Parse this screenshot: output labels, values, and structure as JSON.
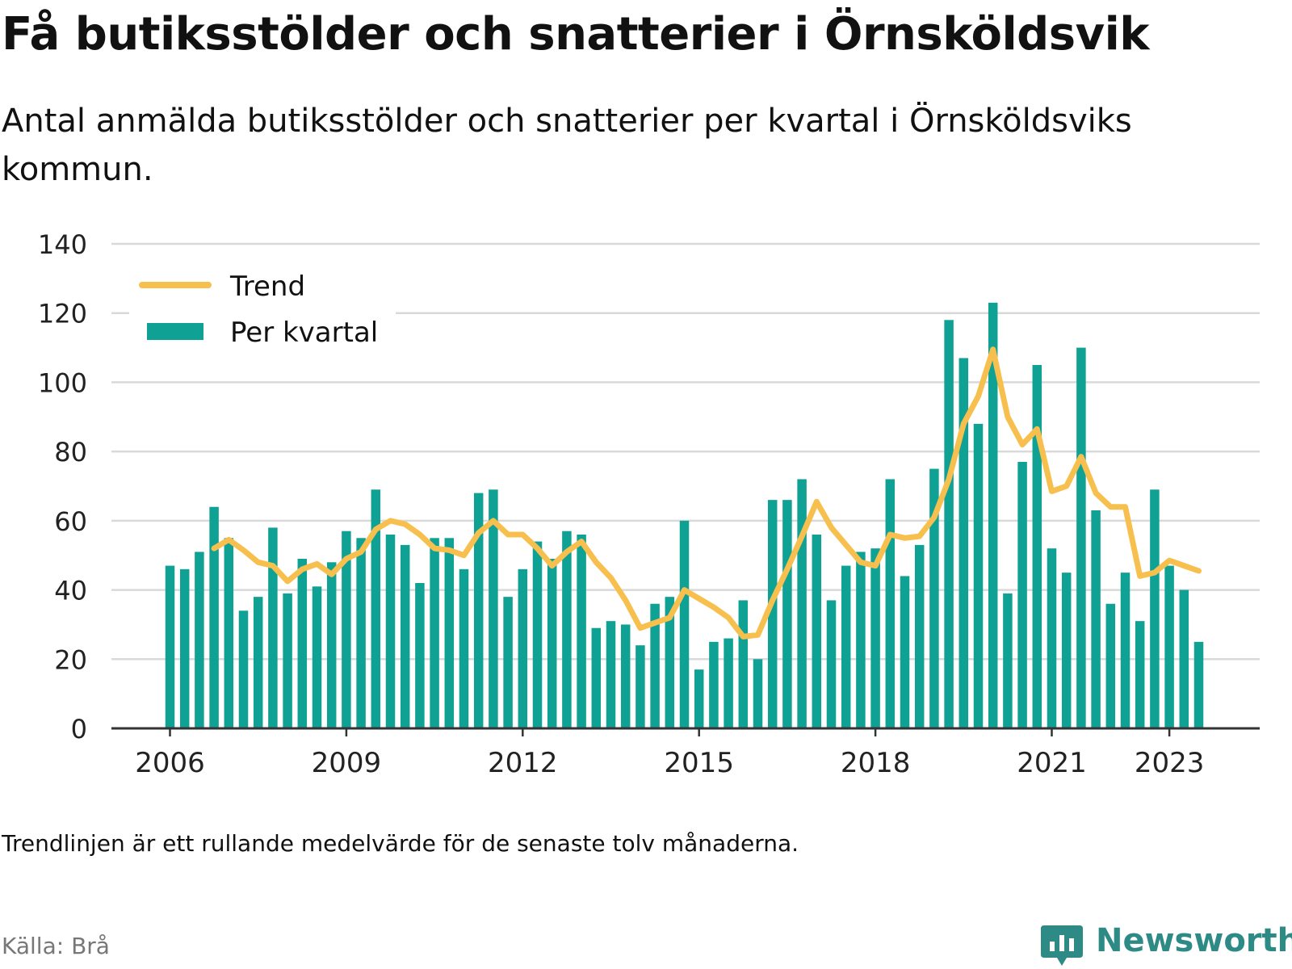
{
  "title": "Få butiksstölder och snatterier i Örnsköldsvik",
  "subtitle": "Antal anmälda butiksstölder och snatterier per kvartal i Örnskölds­viks kommun.",
  "note": "Trendlinjen är ett rullande medelvärde för de senaste tolv månaderna.",
  "source": "Källa: Brå",
  "brand": "Newsworthy",
  "colors": {
    "bars": "#10a195",
    "trend": "#f7c04e",
    "grid": "#d9d9d9",
    "axis": "#333333",
    "brand": "#2d8a85"
  },
  "chart_data": {
    "type": "bar",
    "title": "",
    "xlabel": "",
    "ylabel": "",
    "ylim": [
      0,
      140
    ],
    "yticks": [
      0,
      20,
      40,
      60,
      80,
      100,
      120,
      140
    ],
    "xticks": [
      {
        "label": "2006",
        "index": 0
      },
      {
        "label": "2009",
        "index": 12
      },
      {
        "label": "2012",
        "index": 24
      },
      {
        "label": "2015",
        "index": 36
      },
      {
        "label": "2018",
        "index": 48
      },
      {
        "label": "2021",
        "index": 60
      },
      {
        "label": "2023",
        "index": 68
      }
    ],
    "legend": {
      "position": "top-left",
      "entries": [
        "Trend",
        "Per kvartal"
      ]
    },
    "grid": true,
    "series": [
      {
        "name": "Per kvartal",
        "type": "bar",
        "values": [
          47,
          46,
          51,
          64,
          55,
          34,
          38,
          58,
          39,
          49,
          41,
          48,
          57,
          55,
          69,
          56,
          53,
          42,
          55,
          55,
          46,
          68,
          69,
          38,
          46,
          54,
          49,
          57,
          56,
          29,
          31,
          30,
          24,
          36,
          38,
          60,
          17,
          25,
          26,
          37,
          20,
          66,
          66,
          72,
          56,
          37,
          47,
          51,
          52,
          72,
          44,
          53,
          75,
          118,
          107,
          88,
          123,
          39,
          77,
          105,
          52,
          45,
          110,
          63,
          36,
          45,
          31,
          69,
          47,
          40,
          25
        ]
      },
      {
        "name": "Trend",
        "type": "line",
        "start_index": 3,
        "values": [
          52,
          54.5,
          51.5,
          48,
          47,
          42.5,
          46,
          47.5,
          44.5,
          49,
          51,
          57.5,
          60,
          59,
          56,
          52,
          51.5,
          50,
          56.5,
          60,
          56,
          56,
          52,
          47,
          51,
          54,
          48,
          43.5,
          37,
          29,
          30.5,
          32,
          40,
          37.5,
          35,
          32,
          26.5,
          27,
          37,
          46,
          55.5,
          65.5,
          58,
          53,
          48,
          47,
          56,
          55,
          55.5,
          61,
          72,
          88,
          96,
          109.5,
          90,
          82,
          86.5,
          68.5,
          70,
          78.5,
          68,
          64,
          64,
          44,
          45,
          48.5,
          47,
          45.5
        ]
      }
    ]
  }
}
